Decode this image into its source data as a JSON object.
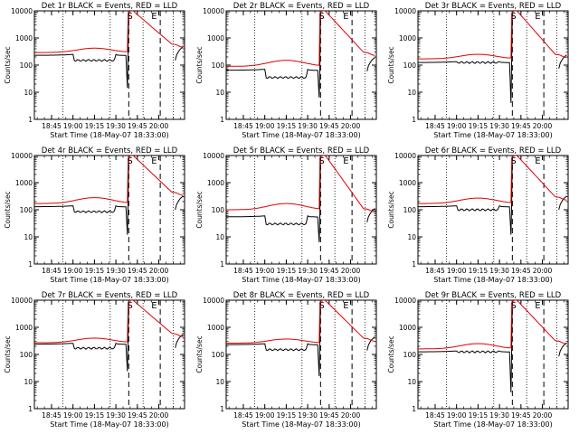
{
  "chart_data": {
    "type": "line",
    "panel_count": 9,
    "grid": false,
    "y_scale": "log",
    "ylabel": "Counts/sec",
    "ylim": [
      1,
      10000
    ],
    "y_ticks": [
      1,
      10,
      100,
      1000,
      10000
    ],
    "y_tick_labels": [
      "1",
      "10",
      "100",
      "1000",
      "10000"
    ],
    "x_range_minutes": [
      0,
      105
    ],
    "x_tick_minutes": [
      12,
      27,
      42,
      57,
      72,
      87
    ],
    "x_tick_labels": [
      "18:45",
      "19:00",
      "19:15",
      "19:30",
      "19:45",
      "20:00"
    ],
    "xlabel": "Start Time (18-May-07 18:33:00)",
    "series_colors": {
      "events": "#000000",
      "lld": "#e00000"
    },
    "markers": [
      {
        "label": "S",
        "minute": 66
      },
      {
        "label": "E",
        "minute": 83
      }
    ],
    "dotted_lines_minutes": [
      20,
      53,
      76,
      97
    ],
    "dashed_lines_minutes": [
      66,
      88
    ],
    "panels": [
      {
        "title": "Det 1r BLACK = Events, RED = LLD",
        "events_base": 230,
        "events_dip": 150,
        "lld_base": 290,
        "lld_peak": 420,
        "lld_after": 600,
        "events_after": 300,
        "events_drop": 18
      },
      {
        "title": "Det 2r BLACK = Events, RED = LLD",
        "events_base": 65,
        "events_dip": 35,
        "lld_base": 90,
        "lld_peak": 150,
        "lld_after": 300,
        "events_after": 120,
        "events_drop": 8
      },
      {
        "title": "Det 3r BLACK = Events, RED = LLD",
        "events_base": 125,
        "events_dip": 125,
        "lld_base": 170,
        "lld_peak": 250,
        "lld_after": 250,
        "events_after": 150,
        "events_drop": 5
      },
      {
        "title": "Det 4r BLACK = Events, RED = LLD",
        "events_base": 130,
        "events_dip": 85,
        "lld_base": 170,
        "lld_peak": 280,
        "lld_after": 450,
        "events_after": 200,
        "events_drop": 15
      },
      {
        "title": "Det 5r BLACK = Events, RED = LLD",
        "events_base": 55,
        "events_dip": 30,
        "lld_base": 100,
        "lld_peak": 170,
        "lld_after": 110,
        "events_after": 70,
        "events_drop": 8
      },
      {
        "title": "Det 6r BLACK = Events, RED = LLD",
        "events_base": 130,
        "events_dip": 100,
        "lld_base": 170,
        "lld_peak": 270,
        "lld_after": 300,
        "events_after": 200,
        "events_drop": 15
      },
      {
        "title": "Det 7r BLACK = Events, RED = LLD",
        "events_base": 240,
        "events_dip": 170,
        "lld_base": 270,
        "lld_peak": 400,
        "lld_after": 600,
        "events_after": 350,
        "events_drop": 30
      },
      {
        "title": "Det 8r BLACK = Events, RED = LLD",
        "events_base": 230,
        "events_dip": 150,
        "lld_base": 260,
        "lld_peak": 370,
        "lld_after": 400,
        "events_after": 280,
        "events_drop": 20
      },
      {
        "title": "Det 9r BLACK = Events, RED = LLD",
        "events_base": 125,
        "events_dip": 125,
        "lld_base": 160,
        "lld_peak": 250,
        "lld_after": 320,
        "events_after": 170,
        "events_drop": 5
      }
    ]
  }
}
